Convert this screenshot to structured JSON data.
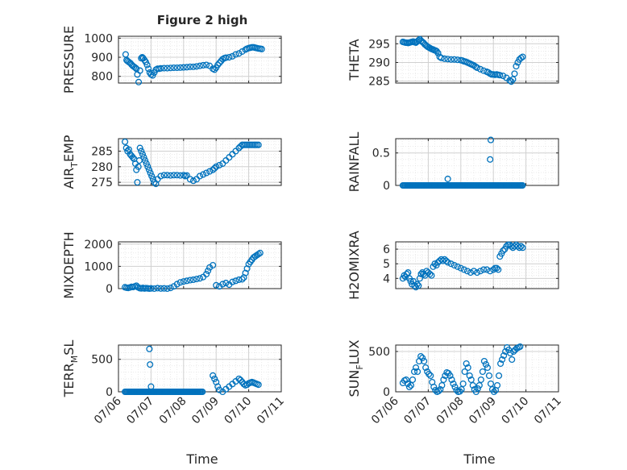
{
  "figure": {
    "title": "Figure 2 high",
    "marker_color": "#0072BD",
    "x_ticks": [
      "07/06",
      "07/07",
      "07/08",
      "07/09",
      "07/10",
      "07/11"
    ],
    "x_axis_label": "Time"
  },
  "chart_data": [
    {
      "type": "scatter",
      "ylabel": "PRESSURE",
      "ylim": [
        765,
        1010
      ],
      "yticks": [
        800,
        900,
        1000
      ],
      "ytick_labels": [
        "800",
        "900",
        "1000"
      ],
      "xlim": [
        0,
        5
      ],
      "grid": true,
      "minor_grid": true,
      "x": [
        0.22,
        0.25,
        0.28,
        0.32,
        0.36,
        0.4,
        0.44,
        0.48,
        0.52,
        0.55,
        0.58,
        0.62,
        0.66,
        0.7,
        0.73,
        0.76,
        0.8,
        0.84,
        0.88,
        0.92,
        0.96,
        1.0,
        1.05,
        1.1,
        1.15,
        1.2,
        1.25,
        1.3,
        1.4,
        1.5,
        1.6,
        1.7,
        1.8,
        1.9,
        2.0,
        2.1,
        2.2,
        2.3,
        2.4,
        2.5,
        2.6,
        2.7,
        2.8,
        2.9,
        2.95,
        3.0,
        3.05,
        3.1,
        3.15,
        3.2,
        3.25,
        3.3,
        3.4,
        3.5,
        3.6,
        3.7,
        3.8,
        3.9,
        3.95,
        4.0,
        4.05,
        4.1,
        4.15,
        4.2,
        4.25,
        4.3,
        4.35,
        4.4
      ],
      "y": [
        915,
        885,
        880,
        875,
        870,
        862,
        855,
        850,
        845,
        840,
        810,
        770,
        830,
        895,
        900,
        895,
        885,
        875,
        860,
        840,
        820,
        810,
        805,
        820,
        835,
        840,
        840,
        842,
        843,
        843,
        844,
        845,
        845,
        846,
        847,
        848,
        850,
        850,
        852,
        855,
        858,
        860,
        855,
        840,
        835,
        845,
        860,
        870,
        880,
        890,
        895,
        898,
        900,
        905,
        915,
        920,
        930,
        940,
        945,
        948,
        950,
        952,
        952,
        950,
        948,
        946,
        945,
        943
      ]
    },
    {
      "type": "scatter",
      "ylabel": "THETA",
      "ylim": [
        284.5,
        297
      ],
      "yticks": [
        285,
        290,
        295
      ],
      "ytick_labels": [
        "285",
        "290",
        "295"
      ],
      "xlim": [
        0,
        5
      ],
      "grid": true,
      "minor_grid": true,
      "x": [
        0.22,
        0.26,
        0.3,
        0.34,
        0.38,
        0.42,
        0.46,
        0.5,
        0.54,
        0.58,
        0.62,
        0.66,
        0.7,
        0.74,
        0.78,
        0.82,
        0.86,
        0.9,
        0.94,
        0.98,
        1.02,
        1.06,
        1.1,
        1.14,
        1.18,
        1.22,
        1.26,
        1.3,
        1.35,
        1.4,
        1.5,
        1.6,
        1.7,
        1.8,
        1.9,
        2.0,
        2.05,
        2.1,
        2.15,
        2.2,
        2.25,
        2.3,
        2.35,
        2.4,
        2.45,
        2.5,
        2.6,
        2.7,
        2.8,
        2.85,
        2.9,
        2.95,
        3.0,
        3.05,
        3.1,
        3.15,
        3.2,
        3.3,
        3.4,
        3.5,
        3.55,
        3.6,
        3.65,
        3.7,
        3.75,
        3.8,
        3.85,
        3.9
      ],
      "y": [
        295.5,
        295.4,
        295.3,
        295.3,
        295.2,
        295.3,
        295.4,
        295.5,
        295.6,
        295.4,
        295.3,
        295.6,
        295.9,
        296.2,
        295.8,
        295.5,
        295.2,
        294.8,
        294.5,
        294.2,
        294.0,
        293.8,
        293.6,
        293.5,
        293.3,
        293.2,
        293.0,
        292.5,
        291.5,
        291.2,
        291.0,
        290.9,
        290.8,
        290.8,
        290.7,
        290.6,
        290.5,
        290.3,
        290.2,
        290.0,
        289.8,
        289.6,
        289.4,
        289.2,
        288.9,
        288.6,
        288.2,
        287.8,
        287.5,
        287.3,
        287.0,
        286.8,
        286.8,
        286.7,
        286.8,
        286.7,
        286.6,
        286.4,
        285.9,
        285.2,
        284.9,
        285.5,
        287.0,
        289.0,
        290.0,
        290.8,
        291.2,
        291.5
      ]
    },
    {
      "type": "scatter",
      "ylabel": "AIRTEMP",
      "ylabel_main": "AIR",
      "ylabel_sub": "T",
      "ylabel_rest": "EMP",
      "ylim": [
        274,
        289
      ],
      "yticks": [
        275,
        280,
        285
      ],
      "ytick_labels": [
        "275",
        "280",
        "285"
      ],
      "xlim": [
        0,
        5
      ],
      "grid": true,
      "minor_grid": true,
      "x": [
        0.2,
        0.24,
        0.28,
        0.32,
        0.36,
        0.4,
        0.44,
        0.48,
        0.52,
        0.55,
        0.58,
        0.61,
        0.64,
        0.66,
        0.7,
        0.74,
        0.78,
        0.82,
        0.86,
        0.9,
        0.94,
        0.98,
        1.02,
        1.06,
        1.1,
        1.15,
        1.2,
        1.3,
        1.4,
        1.5,
        1.6,
        1.7,
        1.8,
        1.9,
        2.0,
        2.05,
        2.1,
        2.2,
        2.3,
        2.4,
        2.5,
        2.6,
        2.7,
        2.8,
        2.9,
        2.95,
        3.0,
        3.1,
        3.2,
        3.3,
        3.4,
        3.5,
        3.6,
        3.7,
        3.75,
        3.8,
        3.85,
        3.9,
        3.95,
        4.0,
        4.05,
        4.1,
        4.15,
        4.2,
        4.25,
        4.3
      ],
      "y": [
        288.0,
        286.0,
        285.0,
        285.5,
        284.0,
        283.5,
        283.0,
        282.5,
        281.0,
        279.0,
        275.0,
        280.0,
        282.0,
        286.0,
        285.0,
        284.0,
        283.0,
        282.0,
        281.0,
        280.0,
        279.0,
        278.0,
        277.0,
        276.0,
        275.0,
        274.5,
        276.0,
        277.0,
        277.3,
        277.3,
        277.2,
        277.3,
        277.3,
        277.2,
        277.3,
        277.0,
        277.2,
        276.0,
        275.5,
        276.0,
        277.0,
        277.5,
        278.0,
        278.5,
        279.0,
        279.5,
        280.0,
        280.5,
        281.0,
        282.0,
        283.0,
        284.0,
        285.0,
        286.0,
        286.5,
        287.0,
        287.0,
        287.0,
        287.0,
        287.0,
        287.0,
        287.0,
        287.0,
        287.0,
        287.0,
        287.0
      ]
    },
    {
      "type": "scatter",
      "ylabel": "RAINFALL",
      "ylim": [
        0,
        0.72
      ],
      "yticks": [
        0,
        0.5
      ],
      "ytick_labels": [
        "0",
        "0.5"
      ],
      "xlim": [
        0,
        5
      ],
      "grid": true,
      "minor_grid": true,
      "baseline_from": 0.22,
      "baseline_to": 3.9,
      "baseline_value": 0,
      "x": [
        1.6,
        2.9,
        2.92
      ],
      "y": [
        0.1,
        0.4,
        0.7
      ]
    },
    {
      "type": "scatter",
      "ylabel": "MIXDEPTH",
      "ylim": [
        0,
        2100
      ],
      "yticks": [
        0,
        1000,
        2000
      ],
      "ytick_labels": [
        "0",
        "1000",
        "2000"
      ],
      "xlim": [
        0,
        5
      ],
      "grid": true,
      "minor_grid": true,
      "x": [
        0.2,
        0.25,
        0.3,
        0.35,
        0.4,
        0.45,
        0.5,
        0.55,
        0.6,
        0.65,
        0.7,
        0.75,
        0.8,
        0.85,
        0.9,
        0.95,
        1.0,
        1.1,
        1.2,
        1.3,
        1.4,
        1.5,
        1.6,
        1.7,
        1.8,
        1.9,
        2.0,
        2.1,
        2.2,
        2.3,
        2.4,
        2.5,
        2.6,
        2.7,
        2.75,
        2.8,
        2.9,
        3.0,
        3.1,
        3.2,
        3.3,
        3.4,
        3.5,
        3.6,
        3.7,
        3.8,
        3.85,
        3.9,
        3.95,
        4.0,
        4.05,
        4.1,
        4.15,
        4.2,
        4.25,
        4.3,
        4.35
      ],
      "y": [
        60,
        40,
        30,
        50,
        80,
        70,
        100,
        130,
        60,
        20,
        10,
        30,
        5,
        20,
        10,
        0,
        10,
        0,
        20,
        5,
        10,
        0,
        30,
        100,
        200,
        280,
        320,
        350,
        380,
        400,
        430,
        460,
        520,
        650,
        800,
        950,
        1050,
        150,
        100,
        200,
        250,
        180,
        300,
        350,
        400,
        420,
        500,
        700,
        900,
        1100,
        1200,
        1300,
        1400,
        1450,
        1500,
        1550,
        1600
      ]
    },
    {
      "type": "scatter",
      "ylabel": "H2OMIXRA",
      "ylim": [
        3.3,
        6.5
      ],
      "yticks": [
        4,
        5,
        6
      ],
      "ytick_labels": [
        "4",
        "5",
        "6"
      ],
      "xlim": [
        0,
        5
      ],
      "grid": true,
      "minor_grid": true,
      "x": [
        0.22,
        0.26,
        0.3,
        0.34,
        0.38,
        0.42,
        0.46,
        0.5,
        0.54,
        0.58,
        0.62,
        0.66,
        0.7,
        0.74,
        0.78,
        0.82,
        0.86,
        0.9,
        0.95,
        1.0,
        1.05,
        1.1,
        1.15,
        1.2,
        1.25,
        1.3,
        1.35,
        1.4,
        1.45,
        1.5,
        1.55,
        1.6,
        1.7,
        1.8,
        1.9,
        2.0,
        2.1,
        2.2,
        2.3,
        2.4,
        2.5,
        2.6,
        2.7,
        2.8,
        2.9,
        3.0,
        3.05,
        3.1,
        3.15,
        3.2,
        3.25,
        3.3,
        3.35,
        3.4,
        3.45,
        3.5,
        3.55,
        3.6,
        3.65,
        3.7,
        3.75,
        3.8,
        3.85,
        3.9
      ],
      "y": [
        4.0,
        4.2,
        4.1,
        4.3,
        4.4,
        4.0,
        3.8,
        3.6,
        3.8,
        3.5,
        3.4,
        3.6,
        3.5,
        4.0,
        4.3,
        4.4,
        4.3,
        4.2,
        4.5,
        4.4,
        4.3,
        4.2,
        4.8,
        5.0,
        4.9,
        5.1,
        5.2,
        5.3,
        5.2,
        5.3,
        5.2,
        5.1,
        5.0,
        4.9,
        4.8,
        4.7,
        4.6,
        4.5,
        4.4,
        4.5,
        4.4,
        4.5,
        4.6,
        4.6,
        4.5,
        4.6,
        4.7,
        4.7,
        4.6,
        5.5,
        5.7,
        5.9,
        6.0,
        6.2,
        6.3,
        6.3,
        6.2,
        6.1,
        6.2,
        6.3,
        6.2,
        6.1,
        6.2,
        6.1
      ]
    },
    {
      "type": "scatter",
      "ylabel": "TERRMSL",
      "ylabel_main": "TERR",
      "ylabel_sub": "M",
      "ylabel_rest": "SL",
      "ylim": [
        0,
        720
      ],
      "yticks": [
        0,
        500
      ],
      "ytick_labels": [
        "0",
        "500"
      ],
      "xlim": [
        0,
        5
      ],
      "grid": true,
      "minor_grid": true,
      "baseline_from": 0.2,
      "baseline_to": 2.6,
      "baseline_value": 0,
      "x": [
        0.95,
        0.97,
        1.0,
        2.9,
        2.95,
        3.0,
        3.05,
        3.1,
        3.2,
        3.3,
        3.4,
        3.5,
        3.6,
        3.7,
        3.75,
        3.8,
        3.85,
        3.9,
        3.95,
        4.0,
        4.05,
        4.1,
        4.15,
        4.2,
        4.25,
        4.3
      ],
      "y": [
        660,
        420,
        80,
        250,
        200,
        150,
        80,
        30,
        0,
        40,
        80,
        120,
        160,
        200,
        180,
        150,
        120,
        100,
        110,
        130,
        140,
        150,
        140,
        130,
        120,
        110
      ]
    },
    {
      "type": "scatter",
      "ylabel": "SUNFLUX",
      "ylabel_main": "SUN",
      "ylabel_sub": "F",
      "ylabel_rest": "LUX",
      "ylim": [
        0,
        580
      ],
      "yticks": [
        0,
        500
      ],
      "ytick_labels": [
        "0",
        "500"
      ],
      "xlim": [
        0,
        5
      ],
      "grid": true,
      "minor_grid": true,
      "x": [
        0.22,
        0.27,
        0.32,
        0.37,
        0.42,
        0.47,
        0.52,
        0.57,
        0.62,
        0.67,
        0.72,
        0.77,
        0.82,
        0.87,
        0.92,
        0.97,
        1.02,
        1.07,
        1.12,
        1.17,
        1.22,
        1.27,
        1.32,
        1.37,
        1.42,
        1.47,
        1.52,
        1.57,
        1.62,
        1.67,
        1.72,
        1.77,
        1.82,
        1.87,
        1.92,
        1.97,
        2.02,
        2.07,
        2.12,
        2.17,
        2.22,
        2.27,
        2.32,
        2.37,
        2.42,
        2.47,
        2.52,
        2.57,
        2.62,
        2.67,
        2.72,
        2.77,
        2.82,
        2.87,
        2.92,
        2.97,
        3.02,
        3.07,
        3.12,
        3.17,
        3.22,
        3.27,
        3.32,
        3.37,
        3.42,
        3.47,
        3.52,
        3.57,
        3.62,
        3.67,
        3.72,
        3.77,
        3.82
      ],
      "y": [
        110,
        140,
        150,
        100,
        60,
        80,
        150,
        250,
        300,
        250,
        380,
        440,
        420,
        380,
        300,
        250,
        220,
        200,
        120,
        60,
        20,
        0,
        10,
        30,
        80,
        150,
        200,
        240,
        230,
        200,
        150,
        100,
        60,
        20,
        0,
        5,
        30,
        100,
        250,
        350,
        300,
        200,
        150,
        80,
        30,
        0,
        40,
        80,
        150,
        250,
        380,
        340,
        300,
        200,
        100,
        30,
        0,
        20,
        80,
        200,
        350,
        400,
        450,
        500,
        550,
        520,
        480,
        400,
        500,
        520,
        540,
        550,
        560
      ]
    }
  ]
}
